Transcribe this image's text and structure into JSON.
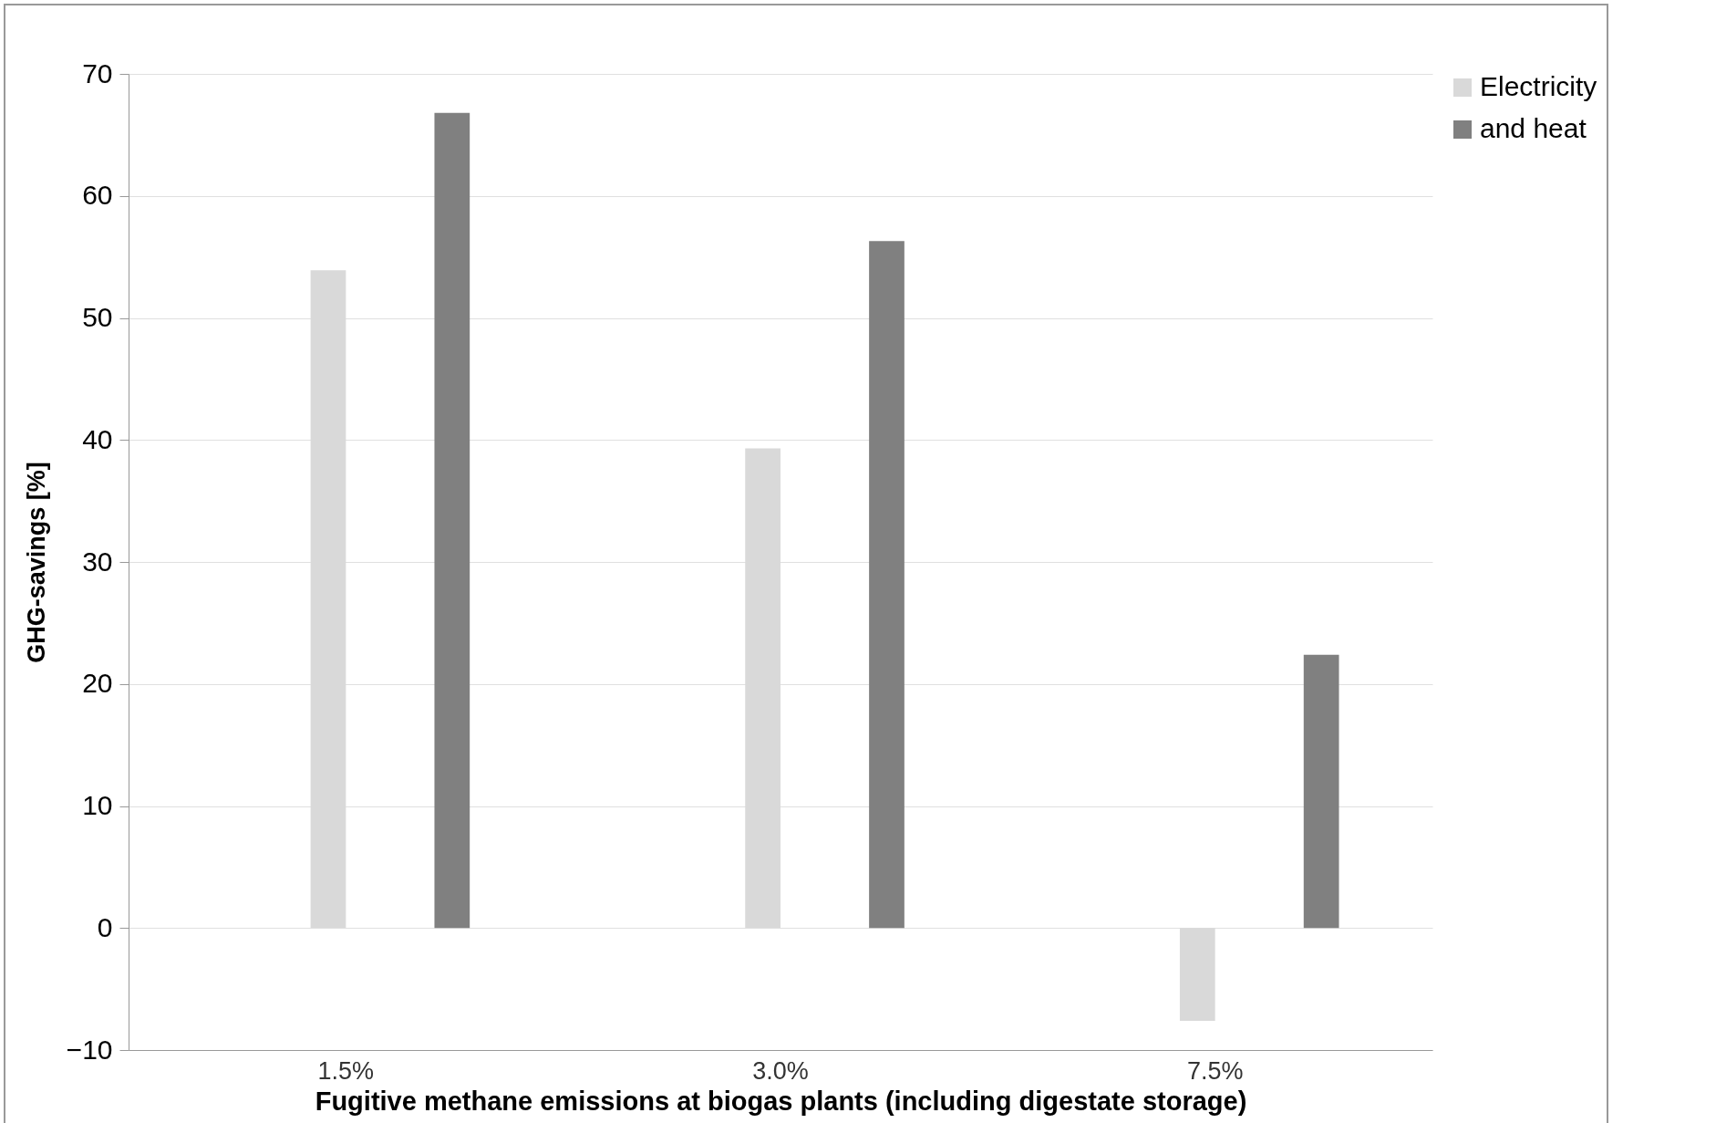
{
  "chart_data": {
    "type": "bar",
    "xlabel": "Fugitive methane emissions at biogas plants (including digestate storage)",
    "ylabel": "GHG-savings [%]",
    "categories": [
      "1.5%",
      "3.0%",
      "7.5%"
    ],
    "series": [
      {
        "name": "Electricity",
        "color": "#d9d9d9",
        "values": [
          53.9,
          39.3,
          -7.6
        ]
      },
      {
        "name": "and heat",
        "color": "#808080",
        "values": [
          66.8,
          56.3,
          22.4
        ]
      }
    ],
    "ylim": [
      -10,
      70
    ],
    "yticks": [
      -10,
      0,
      10,
      20,
      30,
      40,
      50,
      60,
      70
    ],
    "grid": "y",
    "legend": "right"
  }
}
